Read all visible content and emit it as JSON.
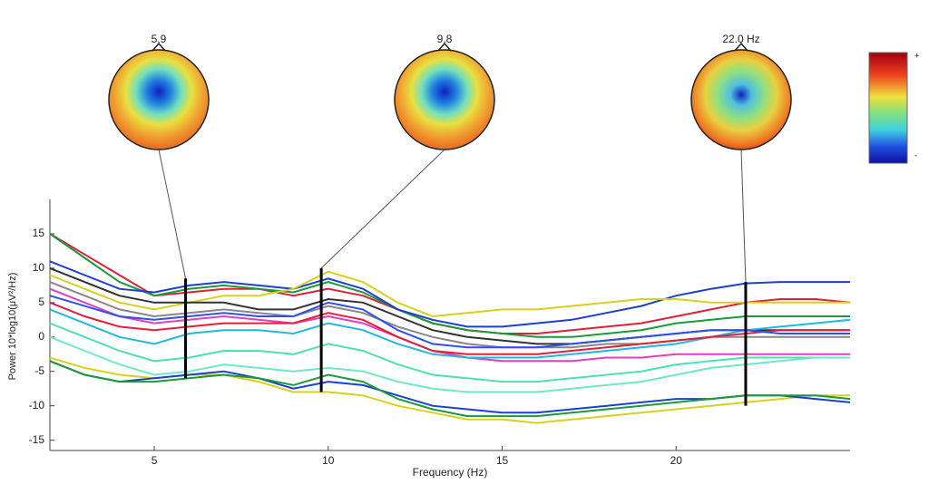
{
  "chart_data": {
    "type": "line",
    "xlabel": "Frequency (Hz)",
    "ylabel": "Power 10*log10(μV²/Hz)",
    "xlim": [
      2,
      25
    ],
    "ylim": [
      -16.5,
      20
    ],
    "xticks": [
      5,
      10,
      15,
      20
    ],
    "yticks": [
      -15,
      -10,
      -5,
      0,
      5,
      10,
      15
    ],
    "grid": false,
    "colorbar_labels": [
      "+",
      "-"
    ],
    "markers": [
      {
        "x": 5.9,
        "ymin": -6,
        "ymax": 8.5
      },
      {
        "x": 9.8,
        "ymin": -8,
        "ymax": 10
      },
      {
        "x": 22.0,
        "label": "22.0 Hz",
        "ymin": -10,
        "ymax": 8
      }
    ],
    "x": [
      2,
      3,
      4,
      5,
      6,
      7,
      8,
      9,
      10,
      11,
      12,
      13,
      14,
      15,
      16,
      17,
      18,
      19,
      20,
      21,
      22,
      23,
      24,
      25
    ],
    "series": [
      {
        "color": "#e0203a",
        "values": [
          15,
          12,
          9,
          6,
          6.5,
          7,
          7,
          6,
          7,
          6,
          4,
          2,
          1,
          0.5,
          0.5,
          1,
          1.5,
          2,
          3,
          4,
          5,
          5.5,
          5.5,
          5
        ]
      },
      {
        "color": "#1a9a3a",
        "values": [
          15,
          11.5,
          8,
          6,
          7,
          7.5,
          7,
          6.5,
          8,
          6.5,
          4,
          2,
          1,
          0.5,
          0,
          0,
          0.5,
          1,
          2,
          2.5,
          3,
          3,
          3,
          3
        ]
      },
      {
        "color": "#1d3fd0",
        "values": [
          11,
          9,
          7,
          6.5,
          7.5,
          8,
          7.5,
          7,
          8.5,
          7,
          4,
          2.5,
          1.5,
          1.5,
          2,
          2.5,
          3.5,
          4.5,
          6,
          7,
          7.8,
          8,
          8,
          8
        ]
      },
      {
        "color": "#d8d020",
        "values": [
          9,
          7,
          5,
          4,
          5,
          6,
          6,
          7,
          9.5,
          8,
          5,
          3,
          3.5,
          4,
          4,
          4.5,
          5,
          5.5,
          5.5,
          5,
          5,
          5,
          5,
          5
        ]
      },
      {
        "color": "#333333",
        "values": [
          10,
          8,
          6,
          5,
          5,
          5,
          4,
          4,
          5.5,
          5,
          3,
          1,
          0,
          -0.5,
          -1,
          -1,
          -0.5,
          0,
          0.5,
          1,
          1,
          1,
          1,
          1
        ]
      },
      {
        "color": "#e040c0",
        "values": [
          7,
          5,
          3,
          2,
          2.5,
          3,
          2.5,
          2,
          3,
          2,
          0,
          -2,
          -3,
          -3.5,
          -3.5,
          -3.5,
          -3,
          -3,
          -2.5,
          -2.5,
          -2.5,
          -2.5,
          -2.5,
          -2.5
        ]
      },
      {
        "color": "#20b8e0",
        "values": [
          4,
          2,
          0,
          -1,
          0.5,
          1,
          1,
          0.5,
          2,
          1,
          -1,
          -2.5,
          -3,
          -3,
          -3,
          -2.5,
          -2,
          -1.5,
          -1,
          0,
          1,
          1.5,
          2,
          2.5
        ]
      },
      {
        "color": "#50e0b0",
        "values": [
          2,
          0,
          -2,
          -3.5,
          -3,
          -2,
          -2,
          -2.5,
          -1,
          -2,
          -4,
          -5.5,
          -6,
          -6.5,
          -6.5,
          -6,
          -5.5,
          -5,
          -4,
          -3.5,
          -3,
          -3,
          -3,
          -3
        ]
      },
      {
        "color": "#70e8c8",
        "values": [
          0,
          -2,
          -4,
          -5.5,
          -5,
          -4,
          -4.5,
          -5,
          -4.5,
          -5,
          -6.5,
          -7.5,
          -8,
          -8,
          -8,
          -7.5,
          -7,
          -6.5,
          -5.5,
          -4.5,
          -4,
          -3.5,
          -3,
          -3
        ]
      },
      {
        "color": "#d8d020",
        "values": [
          -3,
          -4.5,
          -5.5,
          -6,
          -5.5,
          -5.5,
          -6.5,
          -8,
          -8,
          -8.5,
          -10,
          -11,
          -12,
          -12,
          -12.5,
          -12,
          -11.5,
          -11,
          -10.5,
          -10,
          -9.5,
          -9,
          -8.5,
          -8.5
        ]
      },
      {
        "color": "#1d3fd0",
        "values": [
          -3.5,
          -5.5,
          -6.5,
          -6,
          -5.5,
          -5,
          -6,
          -7.5,
          -6.5,
          -7,
          -8.5,
          -10,
          -10.5,
          -11,
          -11,
          -10.5,
          -10,
          -9.5,
          -9,
          -9,
          -8.5,
          -8.5,
          -9,
          -9.5
        ]
      },
      {
        "color": "#1a9a3a",
        "values": [
          -3.5,
          -5.5,
          -6.5,
          -6.5,
          -6,
          -5.5,
          -6,
          -7,
          -5.5,
          -6.5,
          -9,
          -10.5,
          -11.5,
          -11.5,
          -11.5,
          -11,
          -10.5,
          -10,
          -9.5,
          -9,
          -8.5,
          -8.5,
          -8.5,
          -9
        ]
      },
      {
        "color": "#888888",
        "values": [
          8,
          6,
          4,
          3,
          3.5,
          4,
          3.5,
          3,
          4.5,
          3.5,
          1.5,
          0,
          -1,
          -1.5,
          -1.5,
          -1.5,
          -1,
          -1,
          -0.5,
          0,
          0,
          0,
          0,
          0
        ]
      },
      {
        "color": "#e0203a",
        "values": [
          5,
          3,
          1.5,
          1,
          1.5,
          2,
          2,
          2,
          3.5,
          2.5,
          0,
          -2,
          -2.5,
          -2.5,
          -2.5,
          -2,
          -1.5,
          -1,
          -0.5,
          0,
          0.5,
          1,
          1,
          1
        ]
      },
      {
        "color": "#3050e8",
        "values": [
          6,
          4.5,
          3,
          2.5,
          3,
          3.5,
          3,
          3,
          5,
          4,
          1,
          -1,
          -1.5,
          -1.5,
          -1.5,
          -1,
          -0.5,
          0,
          0.5,
          1,
          1,
          0.5,
          0.5,
          0.5
        ]
      }
    ]
  }
}
